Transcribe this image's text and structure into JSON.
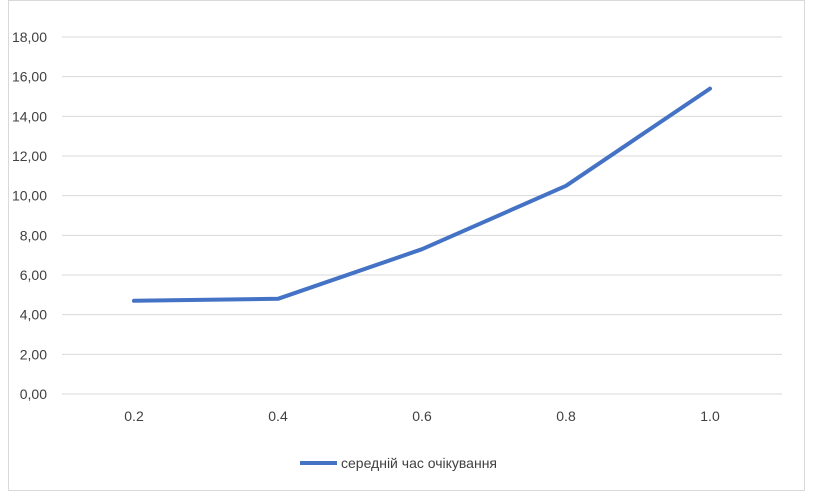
{
  "chart_data": {
    "type": "line",
    "categories": [
      "0.2",
      "0.4",
      "0.6",
      "0.8",
      "1.0"
    ],
    "series": [
      {
        "name": "середній час очікування",
        "values": [
          4.7,
          4.8,
          7.3,
          10.5,
          15.4
        ],
        "color": "#4472C4"
      }
    ],
    "y_ticks": [
      "0,00",
      "2,00",
      "4,00",
      "6,00",
      "8,00",
      "10,00",
      "12,00",
      "14,00",
      "16,00",
      "18,00"
    ],
    "ylim": [
      0,
      18
    ],
    "grid": true,
    "legend_position": "bottom"
  }
}
